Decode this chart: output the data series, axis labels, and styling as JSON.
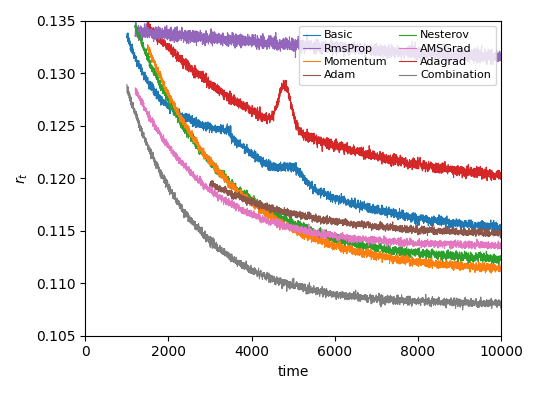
{
  "title": "",
  "xlabel": "time",
  "ylabel": "$r_t$",
  "xlim": [
    0,
    10000
  ],
  "ylim": [
    0.105,
    0.135
  ],
  "seed": 42,
  "n_points": 10000,
  "series": {
    "Basic": {
      "color": "#1f77b4"
    },
    "Momentum": {
      "color": "#ff7f0e"
    },
    "Nesterov": {
      "color": "#2ca02c"
    },
    "Adagrad": {
      "color": "#d62728"
    },
    "RmsProp": {
      "color": "#9467bd"
    },
    "Adam": {
      "color": "#8c564b"
    },
    "AMSGrad": {
      "color": "#e377c2"
    },
    "Combination": {
      "color": "#7f7f7f"
    }
  },
  "legend_loc": "upper right",
  "legend_order": [
    "Basic",
    "RmsProp",
    "Momentum",
    "Adam",
    "Nesterov",
    "AMSGrad",
    "Adagrad",
    "Combination"
  ]
}
